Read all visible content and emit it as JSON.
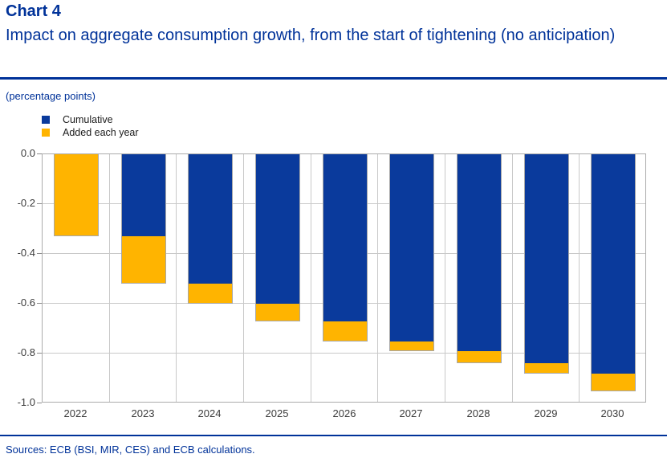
{
  "header": {
    "title": "Chart 4",
    "subtitle": "Impact on aggregate consumption growth, from the start of tightening (no anticipation)"
  },
  "legend": [
    {
      "label": "Cumulative",
      "color": "#0A3A9C"
    },
    {
      "label": "Added each year",
      "color": "#FFB400"
    }
  ],
  "footer": {
    "sources": "Sources: ECB (BSI, MIR, CES) and ECB calculations."
  },
  "colors": {
    "accent_blue": "#003299",
    "bar_blue": "#0A3A9C",
    "bar_orange": "#FFB400",
    "axis_text": "#3C3C3C",
    "gridline": "#C9C9C9",
    "frame": "#ABABAB"
  },
  "chart_data": {
    "type": "bar",
    "stacked": true,
    "title": "Impact on aggregate consumption growth, from the start of tightening (no anticipation)",
    "units": "(percentage points)",
    "categories": [
      "2022",
      "2023",
      "2024",
      "2025",
      "2026",
      "2027",
      "2028",
      "2029",
      "2030"
    ],
    "series": [
      {
        "name": "Cumulative",
        "color": "#0A3A9C",
        "values": [
          0,
          -0.33,
          -0.52,
          -0.6,
          -0.67,
          -0.75,
          -0.79,
          -0.84,
          -0.88
        ]
      },
      {
        "name": "Added each year",
        "color": "#FFB400",
        "values": [
          -0.33,
          -0.19,
          -0.08,
          -0.07,
          -0.08,
          -0.04,
          -0.05,
          -0.04,
          -0.07
        ]
      }
    ],
    "cumulative_totals": [
      -0.33,
      -0.52,
      -0.6,
      -0.67,
      -0.75,
      -0.79,
      -0.84,
      -0.88,
      -0.95
    ],
    "xlabel": "",
    "ylabel": "",
    "ylim": [
      -1.0,
      0.0
    ],
    "ytick_labels": [
      "0.0",
      "-0.2",
      "-0.4",
      "-0.6",
      "-0.8",
      "-1.0"
    ],
    "grid": true,
    "legend_position": "top-left"
  }
}
